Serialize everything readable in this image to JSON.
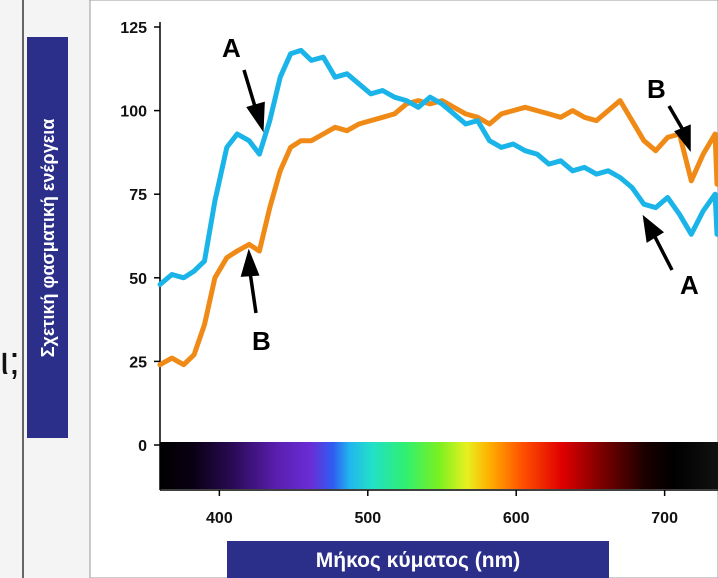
{
  "colors": {
    "series_a": "#1ab4e8",
    "series_b": "#f08a16",
    "label_box": "#2b2f8a",
    "background": "#ffffff"
  },
  "side_text": {
    "left_char": "ι;"
  },
  "chart_data": {
    "type": "line",
    "title": "",
    "xlabel": "Μήκος κύματος (nm)",
    "ylabel": "Σχετική φασματική ενέργεια",
    "xlim": [
      360,
      740
    ],
    "ylim": [
      0,
      125
    ],
    "xticks": [
      "400",
      "500",
      "600",
      "700"
    ],
    "yticks": [
      "0",
      "25",
      "50",
      "75",
      "100",
      "125"
    ],
    "annotations": [
      "A",
      "B",
      "B",
      "A"
    ],
    "spectrum_bar": true,
    "series": [
      {
        "name": "A",
        "color": "#1ab4e8",
        "x": [
          360,
          368,
          376,
          383,
          390,
          397,
          405,
          412,
          420,
          427,
          434,
          441,
          448,
          455,
          462,
          470,
          478,
          486,
          494,
          502,
          510,
          518,
          526,
          534,
          542,
          550,
          558,
          566,
          574,
          582,
          590,
          598,
          606,
          614,
          622,
          630,
          638,
          646,
          654,
          662,
          670,
          678,
          686,
          694,
          702,
          710,
          718,
          726,
          734,
          740
        ],
        "y": [
          48,
          51,
          50,
          52,
          55,
          73,
          89,
          93,
          91,
          87,
          97,
          110,
          117,
          118,
          115,
          116,
          110,
          111,
          108,
          105,
          106,
          104,
          103,
          101,
          104,
          102,
          99,
          96,
          97,
          91,
          89,
          90,
          88,
          87,
          84,
          85,
          82,
          83,
          81,
          82,
          80,
          77,
          72,
          71,
          74,
          69,
          63,
          70,
          75,
          63
        ]
      },
      {
        "name": "B",
        "color": "#f08a16",
        "x": [
          360,
          368,
          376,
          383,
          390,
          397,
          405,
          412,
          420,
          427,
          434,
          441,
          448,
          455,
          462,
          470,
          478,
          486,
          494,
          502,
          510,
          518,
          526,
          534,
          542,
          550,
          558,
          566,
          574,
          582,
          590,
          598,
          606,
          614,
          622,
          630,
          638,
          646,
          654,
          662,
          670,
          678,
          686,
          694,
          702,
          710,
          718,
          726,
          734,
          740
        ],
        "y": [
          24,
          26,
          24,
          27,
          36,
          50,
          56,
          58,
          60,
          58,
          71,
          82,
          89,
          91,
          91,
          93,
          95,
          94,
          96,
          97,
          98,
          99,
          102,
          103,
          102,
          103,
          101,
          99,
          98,
          96,
          99,
          100,
          101,
          100,
          99,
          98,
          100,
          98,
          97,
          100,
          103,
          97,
          91,
          88,
          92,
          93,
          79,
          87,
          93,
          78
        ]
      }
    ]
  }
}
